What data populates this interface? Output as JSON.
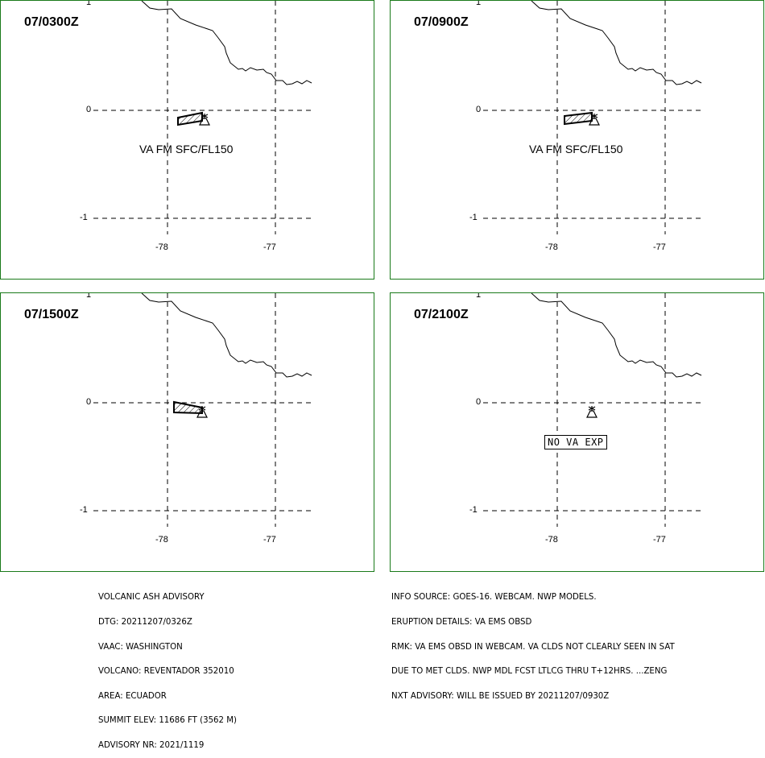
{
  "panels": [
    {
      "title": "07/0300Z",
      "ash_label": "VA FM SFC/FL150",
      "ash_visible": true
    },
    {
      "title": "07/0900Z",
      "ash_label": "VA FM SFC/FL150",
      "ash_visible": true
    },
    {
      "title": "07/1500Z",
      "ash_label": "",
      "ash_visible": true
    },
    {
      "title": "07/2100Z",
      "ash_label": "NO VA EXP",
      "ash_visible": false
    }
  ],
  "axes": {
    "lat_ticks": [
      "1",
      "0",
      "-1"
    ],
    "lon_ticks": [
      "-78",
      "-77"
    ]
  },
  "left_info": [
    "VOLCANIC ASH ADVISORY",
    "DTG: 20211207/0326Z",
    "VAAC: WASHINGTON",
    "VOLCANO: REVENTADOR 352010",
    "AREA: ECUADOR",
    "SUMMIT ELEV: 11686 FT (3562 M)",
    "ADVISORY NR: 2021/1119"
  ],
  "right_info": [
    "INFO SOURCE: GOES-16. WEBCAM. NWP MODELS.",
    "ERUPTION DETAILS: VA EMS OBSD",
    "RMK: VA EMS OBSD IN WEBCAM. VA CLDS NOT CLEARLY SEEN IN SAT",
    "DUE TO MET CLDS. NWP MDL FCST LTLCG THRU T+12HRS. ...ZENG",
    "NXT ADVISORY: WILL BE ISSUED BY 20211207/0930Z"
  ],
  "colors": {
    "panel_border": "#1a7a1a"
  }
}
